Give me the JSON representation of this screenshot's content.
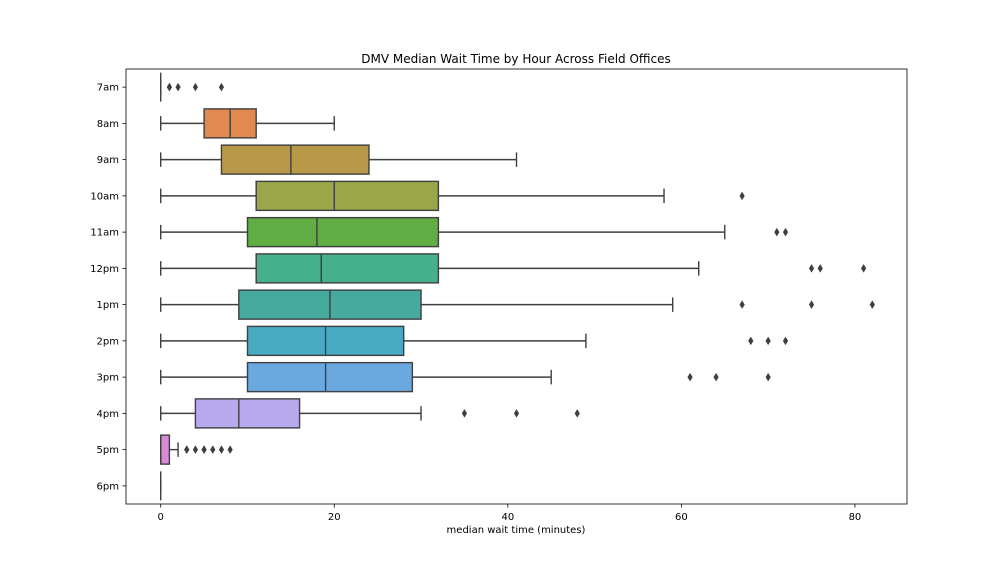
{
  "chart_data": {
    "type": "boxplot",
    "orientation": "horizontal",
    "title": "DMV Median Wait Time by Hour Across Field Offices",
    "xlabel": "median wait time (minutes)",
    "ylabel": "",
    "xlim": [
      -4,
      86
    ],
    "xticks": [
      0,
      20,
      40,
      60,
      80
    ],
    "grid": false,
    "categories": [
      "7am",
      "8am",
      "9am",
      "10am",
      "11am",
      "12pm",
      "1pm",
      "2pm",
      "3pm",
      "4pm",
      "5pm",
      "6pm"
    ],
    "boxes": [
      {
        "category": "7am",
        "whisker_low": 0,
        "q1": 0,
        "median": 0,
        "q3": 0,
        "whisker_high": 0,
        "outliers": [
          1,
          1,
          2,
          4,
          7
        ],
        "color": "#3274a1"
      },
      {
        "category": "8am",
        "whisker_low": 0,
        "q1": 5,
        "median": 8,
        "q3": 11,
        "whisker_high": 20,
        "outliers": [],
        "color": "#e1894e"
      },
      {
        "category": "9am",
        "whisker_low": 0,
        "q1": 7,
        "median": 15,
        "q3": 24,
        "whisker_high": 41,
        "outliers": [],
        "color": "#b8994a"
      },
      {
        "category": "10am",
        "whisker_low": 0,
        "q1": 11,
        "median": 20,
        "q3": 32,
        "whisker_high": 58,
        "outliers": [
          67
        ],
        "color": "#9ba648"
      },
      {
        "category": "11am",
        "whisker_low": 0,
        "q1": 10,
        "median": 18,
        "q3": 32,
        "whisker_high": 65,
        "outliers": [
          71,
          72
        ],
        "color": "#5fad43"
      },
      {
        "category": "12pm",
        "whisker_low": 0,
        "q1": 11,
        "median": 18.5,
        "q3": 32,
        "whisker_high": 62,
        "outliers": [
          75,
          76,
          81
        ],
        "color": "#46b08c"
      },
      {
        "category": "1pm",
        "whisker_low": 0,
        "q1": 9,
        "median": 19.5,
        "q3": 30,
        "whisker_high": 59,
        "outliers": [
          67,
          75,
          82
        ],
        "color": "#47aa9f"
      },
      {
        "category": "2pm",
        "whisker_low": 0,
        "q1": 10,
        "median": 19,
        "q3": 28,
        "whisker_high": 49,
        "outliers": [
          68,
          70,
          72
        ],
        "color": "#48aac2"
      },
      {
        "category": "3pm",
        "whisker_low": 0,
        "q1": 10,
        "median": 19,
        "q3": 29,
        "whisker_high": 45,
        "outliers": [
          61,
          64,
          70
        ],
        "color": "#6aa9e0"
      },
      {
        "category": "4pm",
        "whisker_low": 0,
        "q1": 4,
        "median": 9,
        "q3": 16,
        "whisker_high": 30,
        "outliers": [
          35,
          41,
          48
        ],
        "color": "#b8a9ee"
      },
      {
        "category": "5pm",
        "whisker_low": 0,
        "q1": 0,
        "median": 0,
        "q3": 1,
        "whisker_high": 2,
        "outliers": [
          3,
          3,
          4,
          5,
          5,
          6,
          7,
          8
        ],
        "color": "#d98ad9"
      },
      {
        "category": "6pm",
        "whisker_low": 0,
        "q1": 0,
        "median": 0,
        "q3": 0,
        "whisker_high": 0,
        "outliers": [],
        "color": "#e28fb8"
      }
    ],
    "line_color": "#3f3f3f"
  }
}
